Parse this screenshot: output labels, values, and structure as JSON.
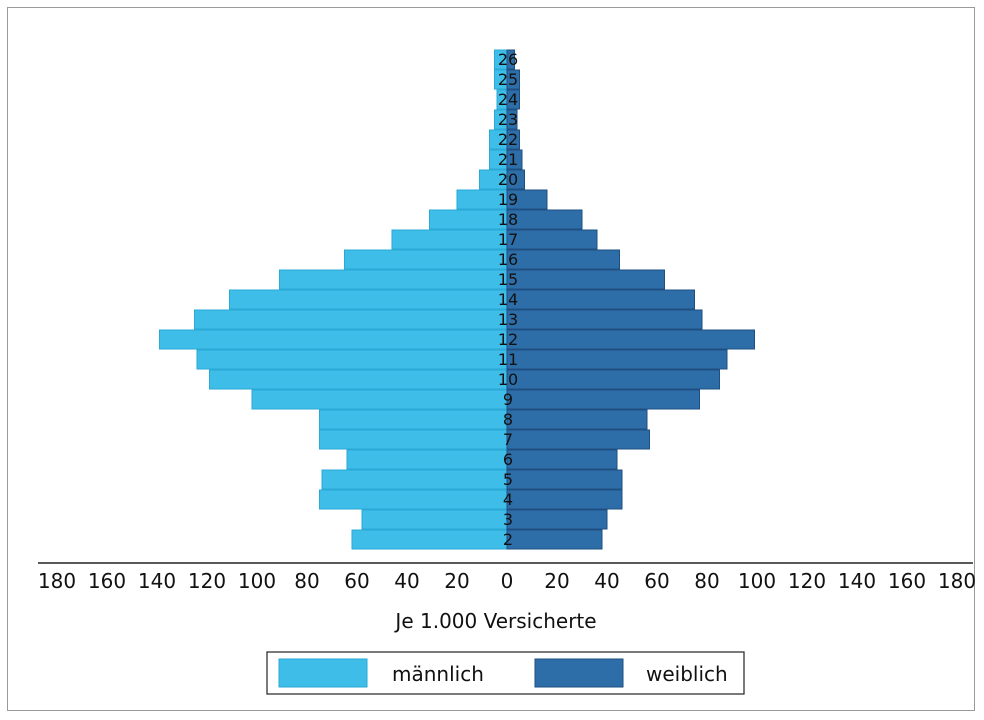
{
  "chart_data": {
    "type": "bar",
    "orientation": "horizontal-butterfly",
    "categories": [
      "2",
      "3",
      "4",
      "5",
      "6",
      "7",
      "8",
      "9",
      "10",
      "11",
      "12",
      "13",
      "14",
      "15",
      "16",
      "17",
      "18",
      "19",
      "20",
      "21",
      "22",
      "23",
      "24",
      "25",
      "26"
    ],
    "series": [
      {
        "name": "männlich",
        "color": "#3dbde7",
        "values": [
          62,
          58,
          75,
          74,
          64,
          75,
          75,
          102,
          119,
          124,
          139,
          125,
          111,
          91,
          65,
          46,
          31,
          20,
          11,
          7,
          7,
          5,
          4,
          5,
          5
        ]
      },
      {
        "name": "weiblich",
        "color": "#2e6ea8",
        "values": [
          38,
          40,
          46,
          46,
          44,
          57,
          56,
          77,
          85,
          88,
          99,
          78,
          75,
          63,
          45,
          36,
          30,
          16,
          7,
          6,
          5,
          4,
          5,
          5,
          3
        ]
      }
    ],
    "xlabel": "Je 1.000 Versicherte",
    "x_ticks": [
      "180",
      "160",
      "140",
      "120",
      "100",
      "80",
      "60",
      "40",
      "20",
      "0",
      "20",
      "40",
      "60",
      "80",
      "100",
      "120",
      "140",
      "160",
      "180"
    ],
    "xlim": [
      -180,
      180
    ],
    "legend": "bottom-center",
    "grid": false
  }
}
